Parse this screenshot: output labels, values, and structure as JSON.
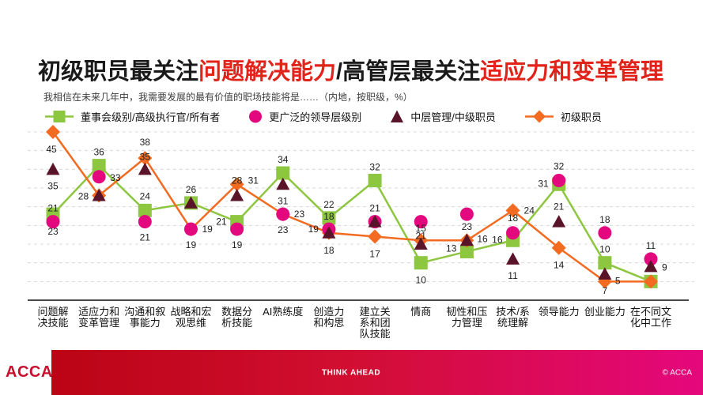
{
  "title": {
    "segments": [
      {
        "text": "初级职员最关注",
        "color": "dark"
      },
      {
        "text": "问题解决能力",
        "color": "red"
      },
      {
        "text": "/高管层最关注",
        "color": "dark"
      },
      {
        "text": "适应力和变革管理",
        "color": "red"
      }
    ]
  },
  "subtitle": "我相信在未来几年中，我需要发展的最有价值的职场技能将是……（内地，按职级，%）",
  "chart_data": {
    "type": "line",
    "title": "初级职员最关注问题解决能力/高管层最关注适应力和变革管理",
    "subtitle": "我相信在未来几年中，我需要发展的最有价值的职场技能将是……（内地，按职级，%）",
    "categories": [
      "问题解决技能",
      "适应力和变革管理",
      "沟通和叙事能力",
      "战略和宏观思维",
      "数据分析技能",
      "AI熟练度",
      "创造力和构思",
      "建立关系和团队技能",
      "情商",
      "韧性和压力管理",
      "技术/系统理解",
      "领导能力",
      "创业能力",
      "在不同文化中工作"
    ],
    "category_label_lines": [
      [
        "问题解",
        "决技能"
      ],
      [
        "适应力和",
        "变革管理"
      ],
      [
        "沟通和叙",
        "事能力"
      ],
      [
        "战略和宏",
        "观思维"
      ],
      [
        "数据分",
        "析技能"
      ],
      [
        "AI熟练度"
      ],
      [
        "创造力",
        "和构思"
      ],
      [
        "建立关",
        "系和团",
        "队技能"
      ],
      [
        "情商"
      ],
      [
        "韧性和压",
        "力管理"
      ],
      [
        "技术/系",
        "统理解"
      ],
      [
        "领导能力"
      ],
      [
        "创业能力"
      ],
      [
        "在不同文",
        "化中工作"
      ]
    ],
    "series": [
      {
        "name": "董事会级别/高级执行官/所有者",
        "marker": "square",
        "color": "#8DC63F",
        "line": true,
        "values": [
          23,
          36,
          24,
          26,
          21,
          34,
          22,
          32,
          10,
          13,
          16,
          31,
          10,
          5
        ]
      },
      {
        "name": "更广泛的领导层级别",
        "marker": "circle",
        "color": "#E3087E",
        "line": false,
        "values": [
          21,
          33,
          21,
          19,
          19,
          23,
          19,
          21,
          21,
          23,
          18,
          32,
          18,
          11
        ]
      },
      {
        "name": "中层管理/中级职员",
        "marker": "triangle",
        "color": "#5A142A",
        "line": false,
        "values": [
          35,
          28,
          35,
          26,
          28,
          31,
          18,
          21,
          15,
          16,
          11,
          21,
          7,
          9
        ]
      },
      {
        "name": "初级职员",
        "marker": "diamond",
        "color": "#F26B21",
        "line": true,
        "values": [
          45,
          28,
          38,
          19,
          31,
          23,
          18,
          17,
          16,
          16,
          24,
          14,
          5,
          5
        ]
      }
    ],
    "hidden_labels": [
      [
        3,
        1
      ],
      [
        2,
        3
      ],
      [
        2,
        7
      ],
      [
        3,
        8
      ],
      [
        2,
        9
      ],
      [
        0,
        13
      ],
      [
        3,
        13
      ]
    ],
    "ylim": [
      0,
      50
    ],
    "grid": "horizontal dashed, every 5 units, no y-axis tick labels",
    "legend_position": "top"
  },
  "footer": {
    "logo": "ACCA",
    "tagline": "THINK AHEAD",
    "copyright": "© ACCA",
    "bar_colors": [
      "#BB0415",
      "#E5077D"
    ]
  },
  "colors": {
    "title_red": "#E2231A",
    "title_dark": "#1a1a1a",
    "subtitle_gray": "#3f3f3f",
    "gridline": "#d8d8d8",
    "axis": "#4a4a4a"
  }
}
